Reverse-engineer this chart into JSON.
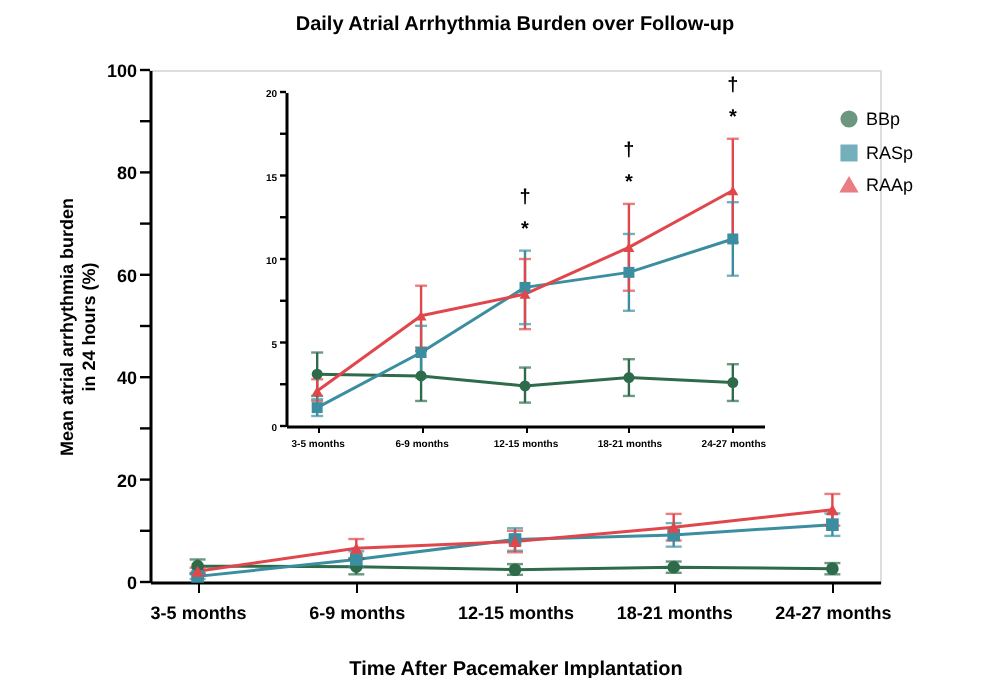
{
  "chart_data": [
    {
      "type": "line",
      "title": "Daily Atrial Arrhythmia Burden over Follow-up",
      "xlabel": "Time After Pacemaker Implantation",
      "ylabel": "Mean atrial arrhythmia burden\nin 24 hours (%)",
      "categories": [
        "3-5 months",
        "6-9 months",
        "12-15 months",
        "18-21 months",
        "24-27 months"
      ],
      "ylim": [
        0,
        100
      ],
      "yticks": [
        0,
        {
          "value": 10,
          "label": null
        },
        20,
        {
          "value": 30,
          "label": null
        },
        40,
        {
          "value": 50,
          "label": null
        },
        60,
        {
          "value": 70,
          "label": null
        },
        80,
        {
          "value": 90,
          "label": null
        },
        100
      ],
      "grid": false,
      "line_style": "solid",
      "series": [
        {
          "color": "#2e6b4a",
          "marker": "circle",
          "values": [
            3.1,
            3.0,
            2.4,
            2.9,
            2.6
          ],
          "errors": [
            [
              1.8,
              4.4
            ],
            [
              1.5,
              4.5
            ],
            [
              1.4,
              3.5
            ],
            [
              1.8,
              4.0
            ],
            [
              1.5,
              3.7
            ]
          ]
        },
        {
          "color": "#3a8ea0",
          "marker": "square",
          "values": [
            1.1,
            4.4,
            8.3,
            9.2,
            11.2
          ],
          "errors": [
            [
              0.6,
              1.6
            ],
            [
              2.9,
              6.0
            ],
            [
              6.1,
              10.5
            ],
            [
              6.9,
              11.5
            ],
            [
              9.0,
              13.4
            ]
          ]
        },
        {
          "color": "#e0474c",
          "marker": "triangle",
          "values": [
            2.1,
            6.6,
            7.9,
            10.7,
            14.1
          ],
          "errors": [
            [
              1.5,
              2.8
            ],
            [
              4.7,
              8.4
            ],
            [
              5.8,
              10.0
            ],
            [
              8.1,
              13.3
            ],
            [
              11.0,
              17.2
            ]
          ]
        }
      ]
    },
    {
      "type": "line",
      "categories": [
        "3-5 months",
        "6-9 months",
        "12-15 months",
        "18-21 months",
        "24-27 months"
      ],
      "ylim": [
        0,
        20
      ],
      "yticks": [
        0,
        {
          "value": 2.5,
          "label": null
        },
        5,
        {
          "value": 7.5,
          "label": null
        },
        10,
        {
          "value": 12.5,
          "label": null
        },
        15,
        {
          "value": 17.5,
          "label": null
        },
        20
      ],
      "legend": "right",
      "grid": false,
      "line_style": "solid",
      "annotations": [
        {
          "text": "*",
          "x": "12-15 months",
          "y": 10.5
        },
        {
          "text": "†",
          "x": "12-15 months",
          "y": 10.5
        },
        {
          "text": "*",
          "x": "18-21 months",
          "y": 13.3
        },
        {
          "text": "†",
          "x": "18-21 months",
          "y": 13.3
        },
        {
          "text": "*",
          "x": "24-27 months",
          "y": 17.2
        },
        {
          "text": "†",
          "x": "24-27 months",
          "y": 17.2
        }
      ],
      "series": [
        {
          "name": "BBp",
          "color": "#2e6b4a",
          "marker": "circle",
          "values": [
            3.1,
            3.0,
            2.4,
            2.9,
            2.6
          ],
          "errors": [
            [
              1.8,
              4.4
            ],
            [
              1.5,
              4.5
            ],
            [
              1.4,
              3.5
            ],
            [
              1.8,
              4.0
            ],
            [
              1.5,
              3.7
            ]
          ]
        },
        {
          "name": "RASp",
          "color": "#3a8ea0",
          "marker": "square",
          "values": [
            1.1,
            4.4,
            8.3,
            9.2,
            11.2
          ],
          "errors": [
            [
              0.6,
              1.6
            ],
            [
              2.9,
              6.0
            ],
            [
              6.1,
              10.5
            ],
            [
              6.9,
              11.5
            ],
            [
              9.0,
              13.4
            ]
          ]
        },
        {
          "name": "RAAp",
          "color": "#e0474c",
          "marker": "triangle",
          "values": [
            2.1,
            6.6,
            7.9,
            10.7,
            14.1
          ],
          "errors": [
            [
              1.5,
              2.8
            ],
            [
              4.7,
              8.4
            ],
            [
              5.8,
              10.0
            ],
            [
              8.1,
              13.3
            ],
            [
              11.0,
              17.2
            ]
          ]
        }
      ]
    }
  ]
}
